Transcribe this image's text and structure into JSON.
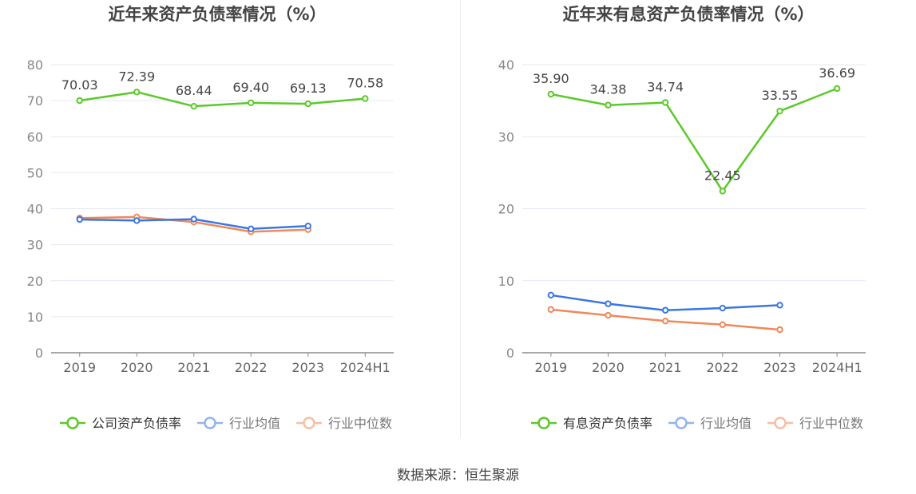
{
  "footer": {
    "source": "数据来源：恒生聚源"
  },
  "chart_data": [
    {
      "type": "line",
      "title": "近年来资产负债率情况（%）",
      "categories": [
        "2019",
        "2020",
        "2021",
        "2022",
        "2023",
        "2024H1"
      ],
      "ylim": [
        0,
        80
      ],
      "yticks": [
        0,
        10,
        20,
        30,
        40,
        50,
        60,
        70,
        80
      ],
      "grid": true,
      "legend_position": "bottom",
      "series": [
        {
          "name": "公司资产负债率",
          "color": "#5bc929",
          "values": [
            70.03,
            72.39,
            68.44,
            69.4,
            69.13,
            70.58
          ],
          "labels": [
            "70.03",
            "72.39",
            "68.44",
            "69.40",
            "69.13",
            "70.58"
          ]
        },
        {
          "name": "行业均值",
          "color": "#3b77e3",
          "values": [
            37.0,
            36.7,
            37.1,
            34.4,
            35.2,
            null
          ]
        },
        {
          "name": "行业中位数",
          "color": "#f0885a",
          "values": [
            37.4,
            37.7,
            36.3,
            33.6,
            34.2,
            null
          ]
        }
      ]
    },
    {
      "type": "line",
      "title": "近年来有息资产负债率情况（%）",
      "categories": [
        "2019",
        "2020",
        "2021",
        "2022",
        "2023",
        "2024H1"
      ],
      "ylim": [
        0,
        40
      ],
      "yticks": [
        0,
        10,
        20,
        30,
        40
      ],
      "grid": true,
      "legend_position": "bottom",
      "series": [
        {
          "name": "有息资产负债率",
          "color": "#5bc929",
          "values": [
            35.9,
            34.38,
            34.74,
            22.45,
            33.55,
            36.69
          ],
          "labels": [
            "35.90",
            "34.38",
            "34.74",
            "22.45",
            "33.55",
            "36.69"
          ]
        },
        {
          "name": "行业均值",
          "color": "#3b77e3",
          "values": [
            8.0,
            6.8,
            5.9,
            6.2,
            6.6,
            null
          ]
        },
        {
          "name": "行业中位数",
          "color": "#f0885a",
          "values": [
            6.0,
            5.2,
            4.4,
            3.9,
            3.2,
            null
          ]
        }
      ]
    }
  ]
}
